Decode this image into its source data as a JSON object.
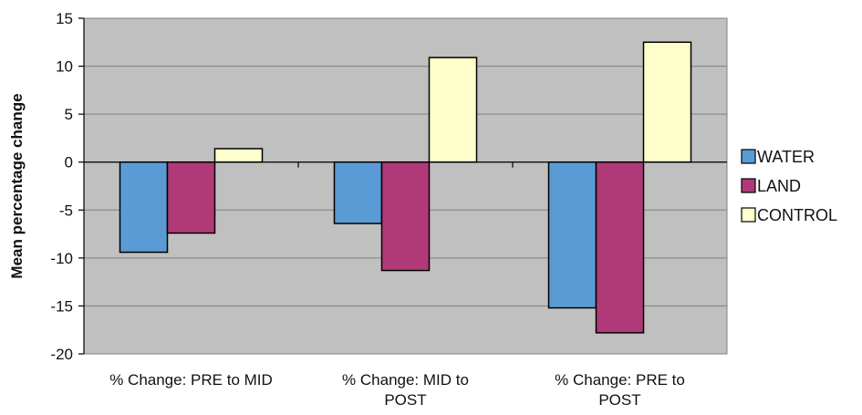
{
  "chart_data": {
    "type": "bar",
    "title": "",
    "xlabel": "",
    "ylabel": "Mean percentage change",
    "ylim": [
      -20,
      15
    ],
    "yticks": [
      15,
      10,
      5,
      0,
      -5,
      -10,
      -15,
      -20
    ],
    "ytick_labels": [
      "15",
      "10",
      "5",
      "0",
      "-5",
      "-10",
      "-15",
      "-20"
    ],
    "grid": true,
    "legend_position": "right",
    "categories": [
      [
        "% Change: PRE to MID"
      ],
      [
        "% Change: MID to",
        "POST"
      ],
      [
        "% Change: PRE to",
        "POST"
      ]
    ],
    "series": [
      {
        "name": "WATER",
        "color": "#5b9bd5",
        "values": [
          -9.4,
          -6.4,
          -15.2
        ]
      },
      {
        "name": "LAND",
        "color": "#b03a78",
        "values": [
          -7.4,
          -11.3,
          -17.8
        ]
      },
      {
        "name": "CONTROL",
        "color": "#ffffcc",
        "values": [
          1.4,
          10.9,
          12.5
        ]
      }
    ],
    "plot_background": "#c0c0c0"
  }
}
